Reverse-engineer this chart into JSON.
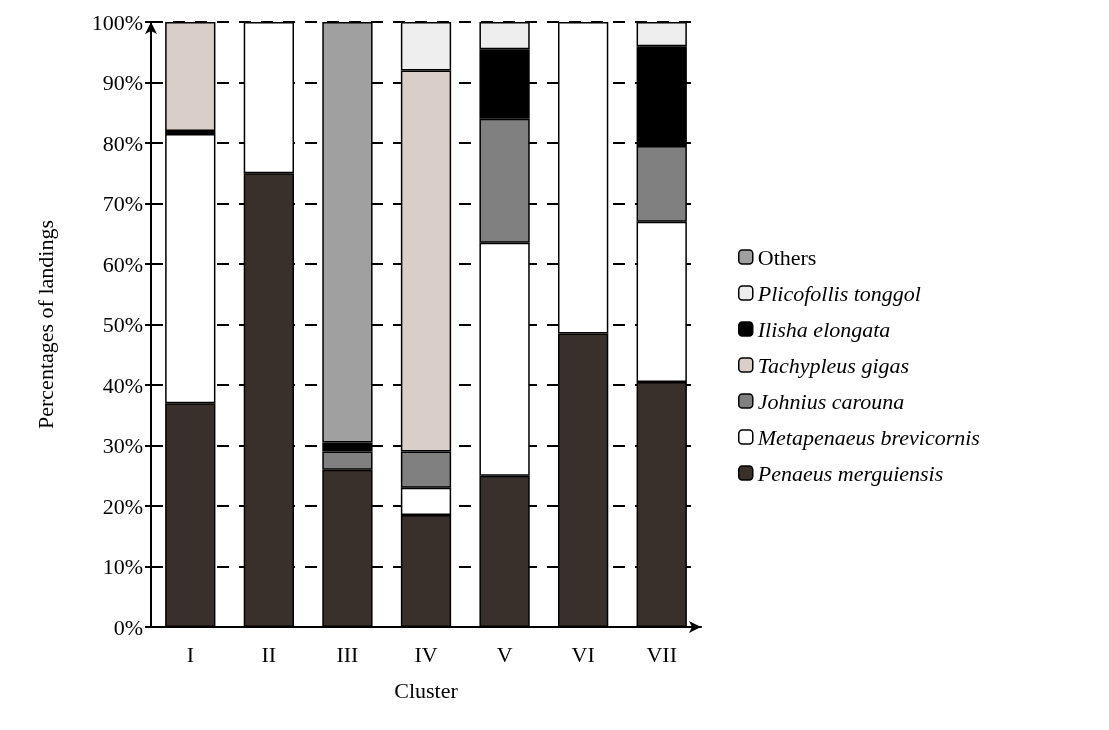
{
  "chart_data": {
    "type": "bar",
    "stacked": true,
    "xlabel": "Cluster",
    "ylabel": "Percentages of landings",
    "categories": [
      "I",
      "II",
      "III",
      "IV",
      "V",
      "VI",
      "VII"
    ],
    "series": [
      {
        "name": "Penaeus merguiensis",
        "color": "#3a302b",
        "values": [
          37,
          75,
          26,
          18.5,
          25,
          48.5,
          40.5
        ]
      },
      {
        "name": "Metapenaeus brevicornis",
        "color": "#ffffff",
        "values": [
          44.5,
          25,
          0,
          4.5,
          38.5,
          51.5,
          26.5
        ]
      },
      {
        "name": "Johnius carouna",
        "color": "#808080",
        "values": [
          0.5,
          0,
          3,
          6,
          20.5,
          0,
          12.5
        ]
      },
      {
        "name": "Tachypleus gigas",
        "color": "#d9cfc8",
        "values": [
          18,
          0,
          0,
          63,
          0,
          0,
          0
        ]
      },
      {
        "name": "Ilisha elongata",
        "color": "#000000",
        "values": [
          0,
          0,
          1.5,
          0,
          11.5,
          0,
          16.5
        ]
      },
      {
        "name": "Plicofollis tonggol",
        "color": "#eeeeee",
        "values": [
          0,
          0,
          0,
          8,
          4.5,
          0,
          4
        ]
      },
      {
        "name": "Others",
        "color": "#a0a0a0",
        "values": [
          0,
          0,
          69.5,
          0,
          0,
          0,
          0
        ]
      }
    ],
    "ylim": [
      0,
      100
    ],
    "yticks": [
      {
        "value": 0,
        "label": "0%"
      },
      {
        "value": 10,
        "label": "10%"
      },
      {
        "value": 20,
        "label": "20%"
      },
      {
        "value": 30,
        "label": "30%"
      },
      {
        "value": 40,
        "label": "40%"
      },
      {
        "value": 50,
        "label": "50%"
      },
      {
        "value": 60,
        "label": "60%"
      },
      {
        "value": 70,
        "label": "70%"
      },
      {
        "value": 80,
        "label": "80%"
      },
      {
        "value": 90,
        "label": "90%"
      },
      {
        "value": 100,
        "label": "100%"
      }
    ],
    "grid": "y",
    "legend": "right"
  }
}
